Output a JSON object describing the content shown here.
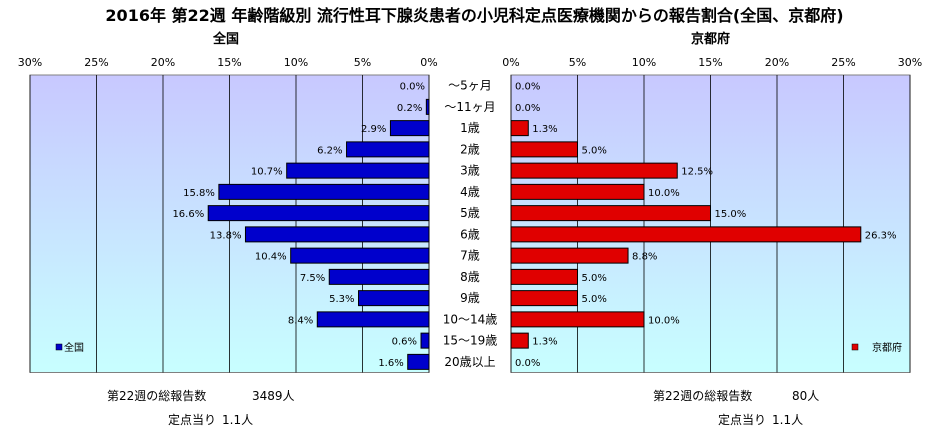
{
  "title": "2016年 第22週 年齢階級別 流行性耳下腺炎患者の小児科定点医療機関からの報告割合(全国、京都府)",
  "colors": {
    "national": "#0000cc",
    "kyoto": "#e00000",
    "plot_top": "#c8c8ff",
    "plot_bottom": "#c8ffff",
    "grid": "#000000"
  },
  "chart_data": [
    {
      "type": "bar",
      "orientation": "horizontal",
      "direction": "right-to-left",
      "title": "全国",
      "legend": "全国",
      "legend_position": "bottom-left",
      "grid": true,
      "xlim": [
        0,
        30
      ],
      "ticks": [
        "0%",
        "5%",
        "10%",
        "15%",
        "20%",
        "25%",
        "30%"
      ],
      "categories": [
        "〜5ヶ月",
        "〜11ヶ月",
        "1歳",
        "2歳",
        "3歳",
        "4歳",
        "5歳",
        "6歳",
        "7歳",
        "8歳",
        "9歳",
        "10〜14歳",
        "15〜19歳",
        "20歳以上"
      ],
      "values": [
        0.0,
        0.2,
        2.9,
        6.2,
        10.7,
        15.8,
        16.6,
        13.8,
        10.4,
        7.5,
        5.3,
        8.4,
        0.6,
        1.6
      ],
      "labels": [
        "0.0%",
        "0.2%",
        "2.9%",
        "6.2%",
        "10.7%",
        "15.8%",
        "16.6%",
        "13.8%",
        "10.4%",
        "7.5%",
        "5.3%",
        "8.4%",
        "0.6%",
        "1.6%"
      ]
    },
    {
      "type": "bar",
      "orientation": "horizontal",
      "direction": "left-to-right",
      "title": "京都府",
      "legend": "京都府",
      "legend_position": "bottom-right",
      "grid": true,
      "xlim": [
        0,
        30
      ],
      "ticks": [
        "0%",
        "5%",
        "10%",
        "15%",
        "20%",
        "25%",
        "30%"
      ],
      "categories": [
        "〜5ヶ月",
        "〜11ヶ月",
        "1歳",
        "2歳",
        "3歳",
        "4歳",
        "5歳",
        "6歳",
        "7歳",
        "8歳",
        "9歳",
        "10〜14歳",
        "15〜19歳",
        "20歳以上"
      ],
      "values": [
        0.0,
        0.0,
        1.3,
        5.0,
        12.5,
        10.0,
        15.0,
        26.3,
        8.8,
        5.0,
        5.0,
        10.0,
        1.3,
        0.0
      ],
      "labels": [
        "0.0%",
        "0.0%",
        "1.3%",
        "5.0%",
        "12.5%",
        "10.0%",
        "15.0%",
        "26.3%",
        "8.8%",
        "5.0%",
        "5.0%",
        "10.0%",
        "1.3%",
        "0.0%"
      ]
    }
  ],
  "footer": {
    "national": {
      "total_label": "第22週の総報告数",
      "total_value": "3489人",
      "per_site_label": "定点当り",
      "per_site_value": "1.1人"
    },
    "kyoto": {
      "total_label": "第22週の総報告数",
      "total_value": "80人",
      "per_site_label": "定点当り",
      "per_site_value": "1.1人"
    }
  }
}
